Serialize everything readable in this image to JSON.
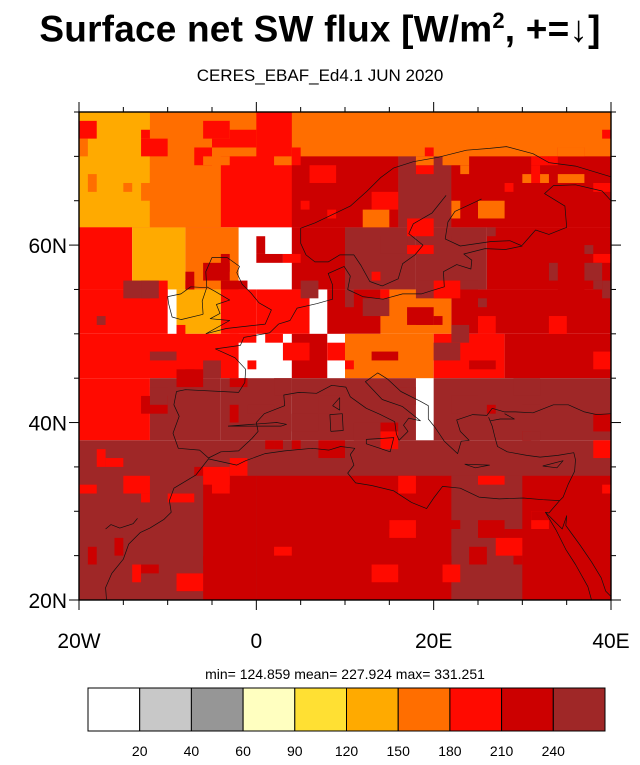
{
  "title_main": "Surface net SW flux [W/m",
  "title_sup": "2",
  "title_tail": ", +=↓]",
  "subtitle": "CERES_EBAF_Ed4.1 JUN 2020",
  "stats_text": "min= 124.859  mean= 227.924  max= 331.251",
  "chart_data": {
    "type": "heatmap",
    "title": "Surface net SW flux [W/m2, +=↓]",
    "subtitle": "CERES_EBAF_Ed4.1 JUN 2020",
    "units": "W/m2",
    "xlim": [
      -20,
      40
    ],
    "ylim": [
      20,
      75
    ],
    "x_ticks": [
      -20,
      0,
      20,
      40
    ],
    "x_tick_labels": [
      "20W",
      "0",
      "20E",
      "40E"
    ],
    "y_ticks": [
      20,
      40,
      60
    ],
    "y_tick_labels": [
      "20N",
      "40N",
      "60N"
    ],
    "statistics": {
      "min": 124.859,
      "mean": 227.924,
      "max": 331.251
    },
    "colorbar": {
      "levels": [
        20,
        40,
        60,
        90,
        120,
        150,
        180,
        210,
        240
      ],
      "level_labels": [
        "20",
        "40",
        "60",
        "90",
        "120",
        "150",
        "180",
        "210",
        "240"
      ],
      "colors": [
        "#ffffff",
        "#c8c8c8",
        "#969696",
        "#ffffc0",
        "#ffe033",
        "#ffaa00",
        "#ff6e00",
        "#ff0a00",
        "#cc0000",
        "#9f2727"
      ]
    },
    "grid_resolution_deg": 1,
    "grid_rows": [
      {
        "lat": [
          62,
          75
        ],
        "runs": [
          [
            -20,
            40,
            7
          ]
        ]
      },
      {
        "lat": [
          62,
          75
        ],
        "runs": [
          [
            -20,
            -12,
            5
          ],
          [
            -12,
            -4,
            6
          ],
          [
            4,
            16,
            8
          ],
          [
            16,
            22,
            9
          ],
          [
            22,
            40,
            8
          ]
        ]
      },
      {
        "lat": [
          70,
          75
        ],
        "runs": [
          [
            -20,
            -12,
            5
          ],
          [
            -12,
            0,
            6
          ],
          [
            4,
            40,
            6
          ]
        ]
      },
      {
        "lat": [
          55,
          62
        ],
        "runs": [
          [
            -20,
            -14,
            7
          ],
          [
            -14,
            -8,
            5
          ],
          [
            -8,
            -2,
            6
          ],
          [
            4,
            10,
            8
          ],
          [
            10,
            18,
            9
          ],
          [
            18,
            26,
            9
          ],
          [
            26,
            40,
            8
          ]
        ]
      },
      {
        "lat": [
          50,
          55
        ],
        "runs": [
          [
            -20,
            -10,
            7
          ],
          [
            -9,
            -4,
            5
          ],
          [
            -4,
            0,
            7
          ],
          [
            0,
            6,
            7
          ],
          [
            8,
            14,
            8
          ],
          [
            14,
            22,
            6
          ],
          [
            22,
            40,
            8
          ]
        ]
      },
      {
        "lat": [
          45,
          50
        ],
        "runs": [
          [
            -20,
            -2,
            7
          ],
          [
            4,
            8,
            8
          ],
          [
            10,
            20,
            6
          ],
          [
            20,
            28,
            7
          ],
          [
            28,
            40,
            8
          ]
        ]
      },
      {
        "lat": [
          38,
          45
        ],
        "runs": [
          [
            -20,
            -12,
            7
          ],
          [
            -12,
            -4,
            9
          ],
          [
            -4,
            4,
            9
          ],
          [
            4,
            18,
            9
          ],
          [
            20,
            40,
            9
          ]
        ]
      },
      {
        "lat": [
          20,
          38
        ],
        "runs": [
          [
            -20,
            40,
            9
          ]
        ]
      },
      {
        "lat": [
          20,
          34
        ],
        "runs": [
          [
            -6,
            0,
            8
          ],
          [
            0,
            22,
            8
          ],
          [
            22,
            30,
            9
          ],
          [
            30,
            40,
            8
          ]
        ]
      }
    ],
    "coastlines": true
  }
}
